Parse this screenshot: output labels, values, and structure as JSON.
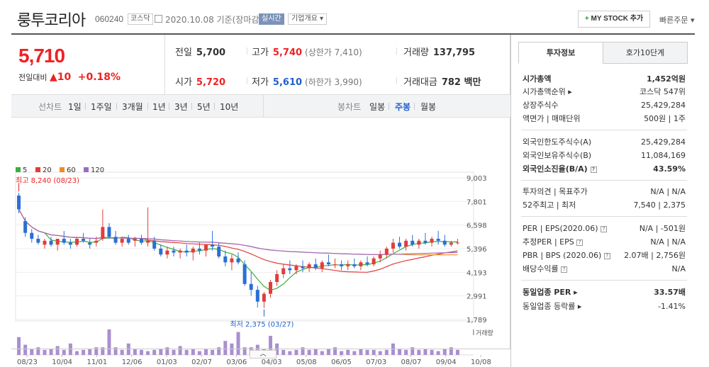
{
  "header": {
    "name": "룽투코리아",
    "code": "060240",
    "market": "코스닥",
    "date_text": "2020.10.08 기준(장마감)",
    "live_label": "실시간",
    "info_label": "기업개요 ▾",
    "mystock_plus": "+",
    "mystock_label": "MY STOCK 추가",
    "quick_order": "빠른주문 ▾"
  },
  "quote": {
    "price": "5,710",
    "change_label": "전일대비",
    "change_value": "▲10",
    "change_pct": "+0.18%",
    "prev_label": "전일",
    "prev": "5,700",
    "high_label": "고가",
    "high": "5,740",
    "upper_limit": "(상한가 7,410)",
    "volume_label": "거래량",
    "volume": "137,795",
    "open_label": "시가",
    "open": "5,720",
    "low_label": "저가",
    "low": "5,610",
    "lower_limit": "(하한가 3,990)",
    "amount_label": "거래대금",
    "amount": "782 백만"
  },
  "chart_tabs": {
    "line_label": "선차트",
    "periods": [
      "1일",
      "1주일",
      "3개월",
      "1년",
      "3년",
      "5년",
      "10년"
    ],
    "candle_label": "봉차트",
    "candles": [
      "일봉",
      "주봉",
      "월봉"
    ],
    "selected_candle": "주봉"
  },
  "chart_data": {
    "type": "candlestick",
    "legend": [
      {
        "name": "5",
        "color": "#3cae3c"
      },
      {
        "name": "20",
        "color": "#e23c3c"
      },
      {
        "name": "60",
        "color": "#f08c1e"
      },
      {
        "name": "120",
        "color": "#9b6bc6"
      }
    ],
    "y_ticks": [
      "9,003",
      "7,801",
      "6,598",
      "5,396",
      "4,193",
      "2,991",
      "1,789"
    ],
    "x_ticks": [
      "08/23",
      "10/04",
      "11/01",
      "12/06",
      "01/03",
      "02/07",
      "03/06",
      "04/03",
      "05/08",
      "06/05",
      "07/03",
      "08/07",
      "09/04",
      "10/08"
    ],
    "max_annotation": "최고 8,240 (08/23)",
    "min_annotation": "최저 2,375 (03/27)",
    "volume_label": "거래량",
    "candles_ohlc": [
      [
        8100,
        8240,
        7200,
        7400
      ],
      [
        6800,
        7000,
        6000,
        6200
      ],
      [
        6200,
        6400,
        5700,
        5900
      ],
      [
        5900,
        6100,
        5600,
        5700
      ],
      [
        5600,
        5900,
        5400,
        5800
      ],
      [
        5800,
        6000,
        5500,
        5600
      ],
      [
        5600,
        5900,
        5300,
        5900
      ],
      [
        5900,
        6300,
        5600,
        5700
      ],
      [
        5700,
        5900,
        5400,
        5600
      ],
      [
        5600,
        6000,
        5500,
        5900
      ],
      [
        5900,
        6200,
        5700,
        5800
      ],
      [
        5700,
        5900,
        5400,
        5600
      ],
      [
        5700,
        6000,
        5500,
        5800
      ],
      [
        5900,
        7400,
        5800,
        6500
      ],
      [
        6500,
        6700,
        5900,
        6000
      ],
      [
        6000,
        6300,
        5600,
        5700
      ],
      [
        5700,
        6000,
        5500,
        5900
      ],
      [
        5900,
        6100,
        5600,
        5700
      ],
      [
        5800,
        6000,
        5500,
        5900
      ],
      [
        5900,
        6100,
        5600,
        5700
      ],
      [
        5700,
        7500,
        5500,
        5800
      ],
      [
        5800,
        6000,
        5300,
        5400
      ],
      [
        5400,
        5600,
        5000,
        5100
      ],
      [
        5100,
        5500,
        4900,
        5300
      ],
      [
        5300,
        5500,
        5000,
        5200
      ],
      [
        5200,
        5400,
        4900,
        5300
      ],
      [
        5300,
        5600,
        5000,
        5200
      ],
      [
        5200,
        5500,
        4800,
        5400
      ],
      [
        5400,
        5700,
        5100,
        5300
      ],
      [
        5300,
        5600,
        5000,
        5600
      ],
      [
        5600,
        6300,
        5300,
        5500
      ],
      [
        5500,
        5700,
        4900,
        5000
      ],
      [
        5000,
        5300,
        4500,
        4700
      ],
      [
        4700,
        5100,
        4300,
        4900
      ],
      [
        4900,
        5200,
        4600,
        4700
      ],
      [
        4600,
        4800,
        3500,
        3600
      ],
      [
        3600,
        4200,
        3000,
        3300
      ],
      [
        3300,
        3500,
        2400,
        2700
      ],
      [
        2700,
        3200,
        2375,
        3100
      ],
      [
        3100,
        3800,
        2900,
        3700
      ],
      [
        3700,
        4300,
        3500,
        4100
      ],
      [
        4100,
        4600,
        3900,
        4400
      ],
      [
        4400,
        4800,
        4100,
        4300
      ],
      [
        4300,
        4600,
        4100,
        4500
      ],
      [
        4500,
        4800,
        4200,
        4400
      ],
      [
        4400,
        4700,
        4200,
        4600
      ],
      [
        4600,
        4900,
        4300,
        4400
      ],
      [
        4400,
        4800,
        4200,
        4700
      ],
      [
        4700,
        5100,
        4500,
        4600
      ],
      [
        4600,
        4900,
        4400,
        4600
      ],
      [
        4600,
        4800,
        4300,
        4500
      ],
      [
        4500,
        4800,
        4300,
        4600
      ],
      [
        4600,
        4900,
        4400,
        4500
      ],
      [
        4500,
        4800,
        4300,
        4700
      ],
      [
        4700,
        5000,
        4500,
        4600
      ],
      [
        4600,
        5000,
        4500,
        4900
      ],
      [
        4900,
        5300,
        4700,
        5100
      ],
      [
        5100,
        5500,
        4900,
        5400
      ],
      [
        5400,
        5900,
        5200,
        5700
      ],
      [
        5700,
        6000,
        5400,
        5500
      ],
      [
        5500,
        5900,
        5300,
        5800
      ],
      [
        5800,
        6100,
        5500,
        5600
      ],
      [
        5600,
        5900,
        5400,
        5800
      ],
      [
        5800,
        6200,
        5600,
        5700
      ],
      [
        5700,
        6000,
        5500,
        5900
      ],
      [
        5900,
        6300,
        5600,
        5800
      ],
      [
        5800,
        6100,
        5500,
        5600
      ],
      [
        5600,
        5800,
        5500,
        5700
      ],
      [
        5700,
        5900,
        5600,
        5710
      ]
    ],
    "volumes": [
      14,
      8,
      5,
      6,
      4,
      5,
      7,
      4,
      9,
      3,
      4,
      5,
      6,
      6,
      20,
      6,
      4,
      9,
      5,
      4,
      3,
      4,
      5,
      6,
      4,
      7,
      4,
      5,
      3,
      5,
      4,
      6,
      11,
      9,
      18,
      6,
      6,
      8,
      5,
      15,
      9,
      4,
      3,
      4,
      6,
      4,
      5,
      3,
      5,
      6,
      3,
      4,
      3,
      5,
      4,
      4,
      3,
      4,
      9,
      5,
      4,
      6,
      4,
      5,
      4,
      3,
      5,
      6,
      4
    ],
    "x_range": [
      "08/23",
      "10/08"
    ],
    "y_range": [
      1789,
      9003
    ]
  },
  "right_tabs": [
    "투자정보",
    "호가10단계"
  ],
  "investment": {
    "market_cap_label": "시가총액",
    "market_cap": "1,452억원",
    "rank_label": "시가총액순위 ▸",
    "rank": "코스닥 547위",
    "shares_label": "상장주식수",
    "shares": "25,429,284",
    "par_label": "액면가 | 매매단위",
    "par": "500원 | 1주",
    "foreign_limit_label": "외국인한도주식수(A)",
    "foreign_limit": "25,429,284",
    "foreign_hold_label": "외국인보유주식수(B)",
    "foreign_hold": "11,084,169",
    "foreign_ratio_label": "외국인소진율(B/A)",
    "foreign_ratio": "43.59%",
    "opinion_label": "투자의견 | 목표주가",
    "opinion": "N/A | N/A",
    "week52_label": "52주최고 | 최저",
    "week52": "7,540 | 2,375",
    "per_label": "PER | EPS(2020.06)",
    "per": "N/A | -501원",
    "est_label": "추정PER | EPS",
    "est": "N/A | N/A",
    "pbr_label": "PBR | BPS (2020.06)",
    "pbr": "2.07배 | 2,756원",
    "div_label": "배당수익률",
    "div": "N/A",
    "ind_per_label": "동일업종 PER ▸",
    "ind_per": "33.57배",
    "ind_rate_label": "동일업종 등락률 ▸",
    "ind_rate": "-1.41%",
    "help_glyph": "?"
  },
  "expand_label": "︿"
}
